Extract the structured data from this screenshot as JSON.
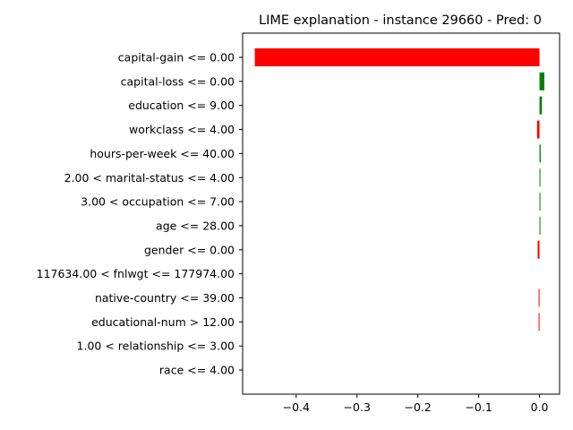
{
  "chart_data": {
    "type": "bar",
    "orientation": "horizontal",
    "title": "LIME explanation - instance 29660 - Pred: 0",
    "xlabel": "",
    "ylabel": "",
    "categories": [
      "capital-gain <= 0.00",
      "capital-loss <= 0.00",
      "education <= 9.00",
      "workclass <= 4.00",
      "hours-per-week <= 40.00",
      "2.00 < marital-status <= 4.00",
      "3.00 < occupation <= 7.00",
      "age <= 28.00",
      "gender <= 0.00",
      "117634.00 < fnlwgt <= 177974.00",
      "native-country <= 39.00",
      "educational-num > 12.00",
      "1.00 < relationship <= 3.00",
      "race <= 4.00"
    ],
    "values": [
      -0.468,
      0.008,
      0.004,
      -0.004,
      0.002,
      0.0015,
      0.0015,
      0.0015,
      -0.003,
      0.0,
      -0.0015,
      -0.0015,
      0.0,
      0.0
    ],
    "bar_colors": [
      "#ff0000",
      "#008000",
      "#008000",
      "#ff0000",
      "#008000",
      "#008000",
      "#008000",
      "#008000",
      "#ff0000",
      "#ff0000",
      "#ff0000",
      "#ff0000",
      "#ff0000",
      "#ff0000"
    ],
    "xlim": [
      -0.488,
      0.033
    ],
    "xticks": [
      -0.4,
      -0.3,
      -0.2,
      -0.1,
      0.0
    ],
    "xtick_labels": [
      "−0.4",
      "−0.3",
      "−0.2",
      "−0.1",
      "0.0"
    ],
    "grid": false,
    "legend": "none"
  }
}
